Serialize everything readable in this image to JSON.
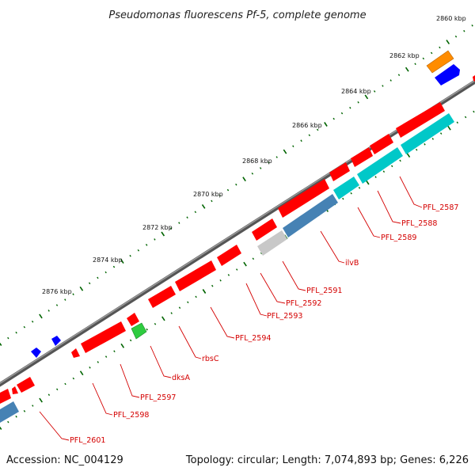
{
  "header": {
    "title": "Pseudomonas fluorescens Pf-5, complete genome"
  },
  "footer": {
    "accession": "Accession: NC_004129",
    "summary": "Topology: circular; Length: 7,074,893 bp; Genes: 6,226"
  },
  "scale": {
    "unit": "kbp",
    "ticks": [
      "2860 kbp",
      "2862 kbp",
      "2864 kbp",
      "2866 kbp",
      "2868 kbp",
      "2870 kbp",
      "2872 kbp",
      "2874 kbp",
      "2876 kbp"
    ]
  },
  "genes": {
    "labels": [
      "PFL_2587",
      "PFL_2588",
      "PFL_2589",
      "ilvB",
      "PFL_2591",
      "PFL_2592",
      "PFL_2593",
      "PFL_2594",
      "rbsC",
      "dksA",
      "PFL_2597",
      "PFL_2598",
      "PFL_2601"
    ]
  },
  "colors": {
    "backbone": "#777777",
    "cds": "#ff0000",
    "cds_alt": "#00c8c8",
    "steelblue": "#4682b4",
    "blue": "#0000ff",
    "orange": "#ff8c00",
    "green": "#2ecc40",
    "gray": "#c0c0c0",
    "tick": "#006400",
    "label": "#d40000"
  }
}
